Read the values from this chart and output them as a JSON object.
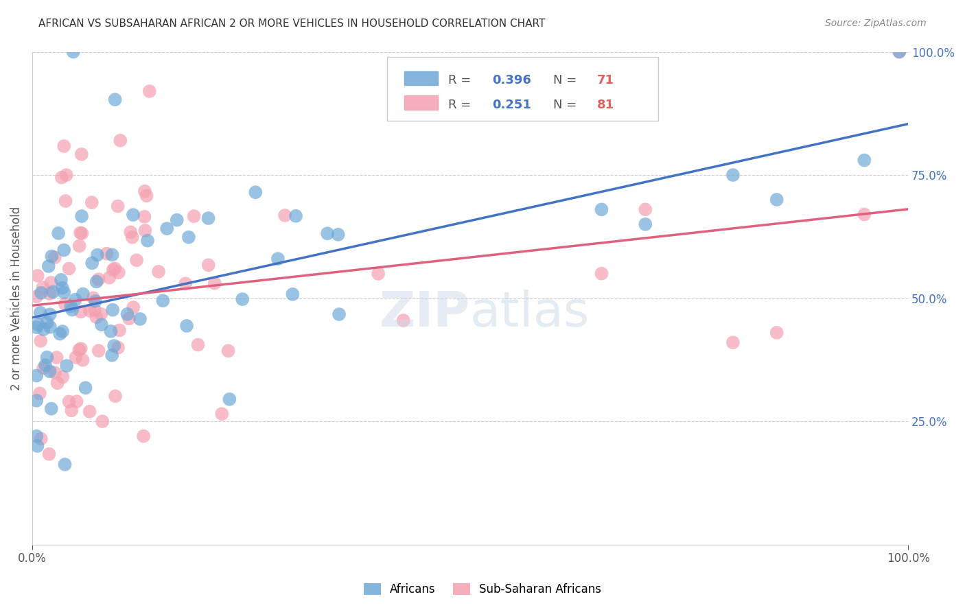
{
  "title": "AFRICAN VS SUBSAHARAN AFRICAN 2 OR MORE VEHICLES IN HOUSEHOLD CORRELATION CHART",
  "source": "Source: ZipAtlas.com",
  "ylabel": "2 or more Vehicles in Household",
  "right_ytick_labels": [
    "100.0%",
    "75.0%",
    "50.0%",
    "25.0%"
  ],
  "right_ytick_values": [
    1.0,
    0.75,
    0.5,
    0.25
  ],
  "legend1_R": "0.396",
  "legend1_N": "71",
  "legend2_R": "0.251",
  "legend2_N": "81",
  "blue_color": "#6fa8d6",
  "pink_color": "#f4a0b0",
  "regression_blue": "#4472c4",
  "regression_pink": "#e06080",
  "background_color": "#ffffff",
  "grid_color": "#cccccc"
}
